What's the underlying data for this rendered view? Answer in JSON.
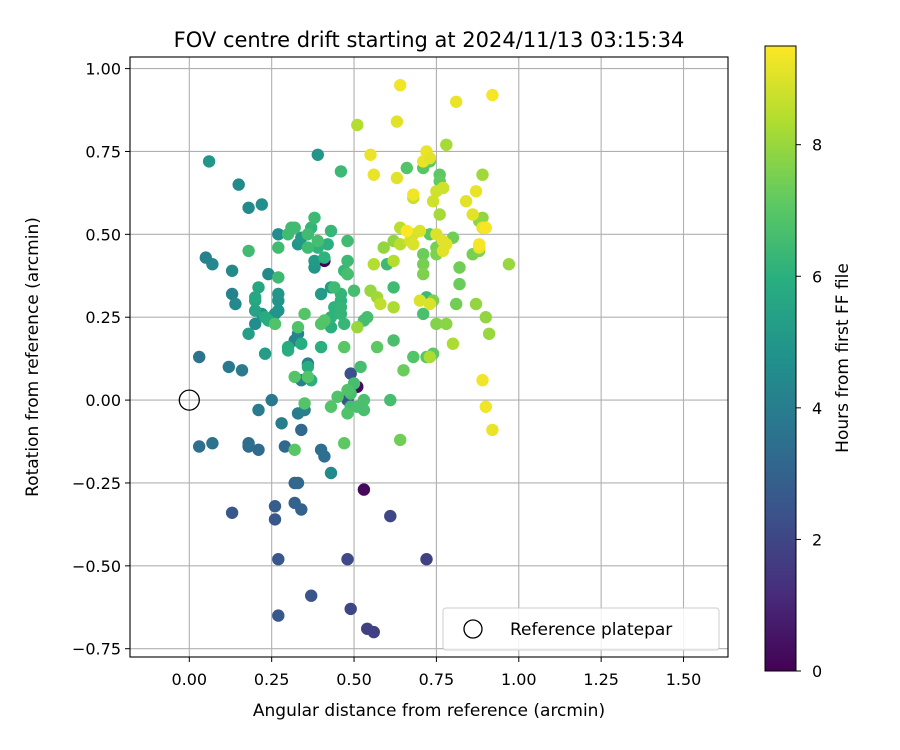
{
  "chart_data": {
    "type": "scatter",
    "title": "FOV centre drift starting at 2024/11/13 03:15:34",
    "xlabel": "Angular distance from reference (arcmin)",
    "ylabel": "Rotation from reference (arcmin)",
    "xlim": [
      -0.18,
      1.635
    ],
    "ylim": [
      -0.775,
      1.035
    ],
    "xticks": [
      0.0,
      0.25,
      0.5,
      0.75,
      1.0,
      1.25,
      1.5
    ],
    "xtick_labels": [
      "0.00",
      "0.25",
      "0.50",
      "0.75",
      "1.00",
      "1.25",
      "1.50"
    ],
    "yticks": [
      -0.75,
      -0.5,
      -0.25,
      0.0,
      0.25,
      0.5,
      0.75,
      1.0
    ],
    "ytick_labels": [
      "−0.75",
      "−0.50",
      "−0.25",
      "0.00",
      "0.25",
      "0.50",
      "0.75",
      "1.00"
    ],
    "grid": true,
    "colormap": "viridis",
    "colorbar": {
      "label": "Hours from first FF file",
      "range": [
        0,
        9.5
      ],
      "ticks": [
        0,
        2,
        4,
        6,
        8
      ],
      "tick_labels": [
        "0",
        "2",
        "4",
        "6",
        "8"
      ]
    },
    "legend": {
      "position": "bottom-right",
      "entries": [
        "Reference platepar"
      ]
    },
    "reference_point": {
      "x": 0.0,
      "y": 0.0,
      "marker": "open-circle",
      "edge_color": "#000000"
    },
    "points": [
      [
        0.41,
        0.42,
        0.1
      ],
      [
        0.51,
        0.04,
        0.3
      ],
      [
        0.53,
        -0.27,
        0.2
      ],
      [
        0.54,
        -0.69,
        1.8
      ],
      [
        0.56,
        -0.7,
        1.8
      ],
      [
        0.49,
        -0.63,
        2.0
      ],
      [
        0.72,
        -0.48,
        1.8
      ],
      [
        0.61,
        -0.35,
        2.0
      ],
      [
        0.48,
        -0.48,
        2.1
      ],
      [
        0.37,
        -0.59,
        2.5
      ],
      [
        0.27,
        -0.65,
        2.6
      ],
      [
        0.27,
        -0.48,
        2.6
      ],
      [
        0.26,
        -0.36,
        2.6
      ],
      [
        0.13,
        -0.34,
        2.6
      ],
      [
        0.26,
        -0.32,
        2.8
      ],
      [
        0.34,
        -0.33,
        3.0
      ],
      [
        0.32,
        -0.31,
        3.0
      ],
      [
        0.32,
        -0.25,
        3.1
      ],
      [
        0.33,
        -0.25,
        3.2
      ],
      [
        0.49,
        0.08,
        2.3
      ],
      [
        0.48,
        0.0,
        2.4
      ],
      [
        0.41,
        -0.17,
        3.4
      ],
      [
        0.4,
        -0.15,
        3.4
      ],
      [
        0.34,
        -0.09,
        3.2
      ],
      [
        0.29,
        -0.14,
        3.2
      ],
      [
        0.21,
        -0.15,
        3.3
      ],
      [
        0.18,
        -0.14,
        3.3
      ],
      [
        0.18,
        -0.13,
        3.4
      ],
      [
        0.07,
        -0.13,
        3.6
      ],
      [
        0.03,
        -0.14,
        3.4
      ],
      [
        0.03,
        0.13,
        3.6
      ],
      [
        0.12,
        0.1,
        3.8
      ],
      [
        0.16,
        0.09,
        3.9
      ],
      [
        0.25,
        0.0,
        3.8
      ],
      [
        0.21,
        -0.03,
        3.9
      ],
      [
        0.28,
        -0.07,
        4.0
      ],
      [
        0.33,
        -0.04,
        4.0
      ],
      [
        0.35,
        -0.03,
        4.1
      ],
      [
        0.43,
        -0.22,
        4.5
      ],
      [
        0.36,
        0.11,
        4.1
      ],
      [
        0.34,
        0.06,
        4.1
      ],
      [
        0.32,
        0.18,
        4.2
      ],
      [
        0.33,
        0.2,
        4.3
      ],
      [
        0.13,
        0.32,
        4.2
      ],
      [
        0.14,
        0.29,
        4.4
      ],
      [
        0.13,
        0.39,
        4.5
      ],
      [
        0.07,
        0.41,
        4.4
      ],
      [
        0.05,
        0.43,
        4.2
      ],
      [
        0.15,
        0.65,
        4.5
      ],
      [
        0.18,
        0.58,
        4.5
      ],
      [
        0.22,
        0.59,
        4.7
      ],
      [
        0.06,
        0.72,
        5.0
      ],
      [
        0.39,
        0.74,
        5.0
      ],
      [
        0.27,
        0.5,
        4.6
      ],
      [
        0.24,
        0.38,
        4.5
      ],
      [
        0.2,
        0.23,
        4.6
      ],
      [
        0.22,
        0.26,
        4.7
      ],
      [
        0.26,
        0.26,
        4.8
      ],
      [
        0.27,
        0.27,
        4.9
      ],
      [
        0.27,
        0.3,
        4.9
      ],
      [
        0.27,
        0.32,
        5.0
      ],
      [
        0.33,
        0.47,
        5.0
      ],
      [
        0.34,
        0.49,
        5.1
      ],
      [
        0.38,
        0.4,
        5.0
      ],
      [
        0.38,
        0.42,
        5.1
      ],
      [
        0.4,
        0.32,
        5.1
      ],
      [
        0.43,
        0.34,
        5.2
      ],
      [
        0.23,
        0.14,
        5.2
      ],
      [
        0.18,
        0.2,
        5.3
      ],
      [
        0.2,
        0.27,
        5.5
      ],
      [
        0.2,
        0.3,
        5.6
      ],
      [
        0.21,
        0.34,
        5.6
      ],
      [
        0.2,
        0.31,
        5.7
      ],
      [
        0.23,
        0.25,
        5.8
      ],
      [
        0.24,
        0.24,
        5.9
      ],
      [
        0.3,
        0.16,
        5.8
      ],
      [
        0.3,
        0.15,
        5.9
      ],
      [
        0.34,
        0.17,
        5.9
      ],
      [
        0.36,
        0.1,
        5.9
      ],
      [
        0.37,
        0.06,
        6.0
      ],
      [
        0.4,
        0.16,
        6.0
      ],
      [
        0.43,
        0.22,
        6.0
      ],
      [
        0.43,
        0.25,
        6.1
      ],
      [
        0.44,
        0.28,
        6.1
      ],
      [
        0.46,
        0.3,
        6.1
      ],
      [
        0.46,
        0.28,
        6.2
      ],
      [
        0.46,
        0.32,
        6.2
      ],
      [
        0.46,
        0.26,
        6.2
      ],
      [
        0.47,
        0.23,
        6.3
      ],
      [
        0.48,
        0.38,
        6.2
      ],
      [
        0.47,
        0.39,
        6.3
      ],
      [
        0.42,
        0.47,
        6.0
      ],
      [
        0.41,
        0.43,
        6.1
      ],
      [
        0.39,
        0.46,
        6.1
      ],
      [
        0.37,
        0.52,
        6.2
      ],
      [
        0.38,
        0.55,
        6.4
      ],
      [
        0.36,
        0.5,
        6.5
      ],
      [
        0.18,
        0.45,
        6.5
      ],
      [
        0.27,
        0.37,
        6.4
      ],
      [
        0.27,
        0.46,
        6.5
      ],
      [
        0.3,
        0.5,
        6.5
      ],
      [
        0.32,
        0.52,
        6.5
      ],
      [
        0.31,
        0.52,
        6.5
      ],
      [
        0.36,
        0.46,
        6.5
      ],
      [
        0.39,
        0.48,
        6.6
      ],
      [
        0.43,
        0.51,
        6.3
      ],
      [
        0.46,
        0.69,
        6.4
      ],
      [
        0.48,
        0.48,
        6.5
      ],
      [
        0.48,
        0.42,
        6.4
      ],
      [
        0.48,
        0.38,
        6.6
      ],
      [
        0.44,
        0.34,
        6.5
      ],
      [
        0.5,
        0.33,
        6.6
      ],
      [
        0.53,
        0.24,
        6.6
      ],
      [
        0.54,
        0.25,
        6.6
      ],
      [
        0.52,
        0.1,
        6.6
      ],
      [
        0.5,
        0.05,
        6.6
      ],
      [
        0.49,
        0.02,
        6.6
      ],
      [
        0.49,
        -0.02,
        6.6
      ],
      [
        0.51,
        -0.02,
        6.7
      ],
      [
        0.53,
        -0.03,
        6.7
      ],
      [
        0.53,
        0.0,
        6.7
      ],
      [
        0.48,
        -0.04,
        6.8
      ],
      [
        0.48,
        0.03,
        6.8
      ],
      [
        0.45,
        0.01,
        6.8
      ],
      [
        0.43,
        -0.02,
        6.9
      ],
      [
        0.35,
        -0.01,
        6.9
      ],
      [
        0.36,
        0.07,
        6.9
      ],
      [
        0.32,
        0.07,
        6.9
      ],
      [
        0.32,
        -0.15,
        7.0
      ],
      [
        0.26,
        0.23,
        6.8
      ],
      [
        0.33,
        0.22,
        6.8
      ],
      [
        0.35,
        0.26,
        6.9
      ],
      [
        0.4,
        0.23,
        6.9
      ],
      [
        0.41,
        0.24,
        6.9
      ],
      [
        0.47,
        0.16,
        7.0
      ],
      [
        0.47,
        -0.13,
        7.1
      ],
      [
        0.61,
        0.0,
        6.6
      ],
      [
        0.62,
        0.34,
        6.5
      ],
      [
        0.6,
        0.41,
        6.4
      ],
      [
        0.72,
        0.31,
        6.4
      ],
      [
        0.71,
        0.26,
        6.7
      ],
      [
        0.62,
        0.18,
        6.7
      ],
      [
        0.68,
        0.13,
        6.9
      ],
      [
        0.72,
        0.13,
        7.0
      ],
      [
        0.74,
        0.14,
        7.1
      ],
      [
        0.65,
        0.09,
        7.3
      ],
      [
        0.64,
        -0.12,
        7.4
      ],
      [
        0.57,
        0.16,
        7.1
      ],
      [
        0.66,
        0.7,
        6.9
      ],
      [
        0.71,
        0.7,
        7.0
      ],
      [
        0.73,
        0.72,
        7.1
      ],
      [
        0.76,
        0.68,
        7.1
      ],
      [
        0.76,
        0.66,
        7.2
      ],
      [
        0.77,
        0.64,
        7.3
      ],
      [
        0.73,
        0.5,
        7.0
      ],
      [
        0.71,
        0.44,
        7.3
      ],
      [
        0.75,
        0.46,
        7.5
      ],
      [
        0.75,
        0.44,
        7.6
      ],
      [
        0.71,
        0.41,
        7.5
      ],
      [
        0.71,
        0.38,
        7.6
      ],
      [
        0.74,
        0.3,
        7.6
      ],
      [
        0.75,
        0.23,
        7.7
      ],
      [
        0.78,
        0.23,
        7.8
      ],
      [
        0.81,
        0.29,
        7.4
      ],
      [
        0.82,
        0.35,
        7.3
      ],
      [
        0.82,
        0.4,
        7.4
      ],
      [
        0.8,
        0.49,
        7.4
      ],
      [
        0.86,
        0.44,
        7.5
      ],
      [
        0.88,
        0.45,
        7.6
      ],
      [
        0.88,
        0.54,
        7.8
      ],
      [
        0.89,
        0.55,
        7.9
      ],
      [
        0.87,
        0.29,
        7.9
      ],
      [
        0.9,
        0.25,
        7.9
      ],
      [
        0.91,
        0.2,
        8.0
      ],
      [
        0.97,
        0.41,
        8.0
      ],
      [
        0.89,
        0.68,
        8.1
      ],
      [
        0.78,
        0.77,
        8.2
      ],
      [
        0.76,
        0.56,
        8.2
      ],
      [
        0.8,
        0.17,
        8.3
      ],
      [
        0.73,
        0.13,
        8.3
      ],
      [
        0.59,
        0.46,
        7.9
      ],
      [
        0.62,
        0.48,
        7.9
      ],
      [
        0.51,
        0.22,
        8.0
      ],
      [
        0.55,
        0.33,
        8.0
      ],
      [
        0.57,
        0.31,
        8.1
      ],
      [
        0.62,
        0.28,
        8.3
      ],
      [
        0.56,
        0.41,
        8.4
      ],
      [
        0.62,
        0.42,
        8.4
      ],
      [
        0.64,
        0.47,
        8.5
      ],
      [
        0.64,
        0.52,
        8.5
      ],
      [
        0.58,
        0.29,
        8.6
      ],
      [
        0.51,
        0.83,
        8.4
      ],
      [
        0.68,
        0.61,
        8.7
      ],
      [
        0.74,
        0.6,
        8.8
      ],
      [
        0.75,
        0.63,
        8.8
      ],
      [
        0.77,
        0.64,
        8.8
      ],
      [
        0.68,
        0.5,
        8.9
      ],
      [
        0.67,
        0.48,
        8.9
      ],
      [
        0.68,
        0.47,
        9.0
      ],
      [
        0.7,
        0.51,
        9.0
      ],
      [
        0.7,
        0.3,
        9.0
      ],
      [
        0.73,
        0.29,
        9.0
      ],
      [
        0.75,
        0.5,
        9.0
      ],
      [
        0.77,
        0.45,
        9.1
      ],
      [
        0.77,
        0.48,
        9.1
      ],
      [
        0.78,
        0.47,
        9.1
      ],
      [
        0.84,
        0.6,
        9.1
      ],
      [
        0.86,
        0.56,
        9.1
      ],
      [
        0.87,
        0.63,
        9.2
      ],
      [
        0.88,
        0.46,
        9.2
      ],
      [
        0.89,
        0.52,
        9.2
      ],
      [
        0.89,
        0.06,
        9.3
      ],
      [
        0.9,
        -0.02,
        9.3
      ],
      [
        0.92,
        -0.09,
        9.2
      ],
      [
        0.55,
        0.74,
        9.2
      ],
      [
        0.56,
        0.68,
        9.2
      ],
      [
        0.63,
        0.84,
        9.1
      ],
      [
        0.63,
        0.67,
        9.1
      ],
      [
        0.68,
        0.62,
        9.3
      ],
      [
        0.71,
        0.72,
        9.2
      ],
      [
        0.72,
        0.75,
        9.2
      ],
      [
        0.73,
        0.73,
        9.1
      ],
      [
        0.64,
        0.95,
        9.3
      ],
      [
        0.81,
        0.9,
        9.2
      ],
      [
        0.92,
        0.92,
        9.4
      ],
      [
        0.88,
        0.47,
        9.4
      ],
      [
        0.9,
        0.52,
        9.4
      ],
      [
        0.66,
        0.51,
        9.5
      ]
    ]
  }
}
